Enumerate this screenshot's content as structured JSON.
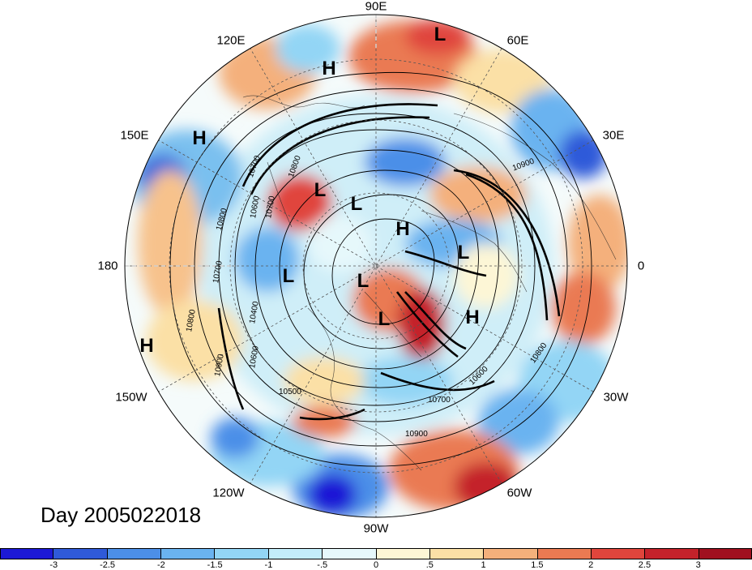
{
  "title": "Day 2005022018",
  "longitude_labels": [
    "90E",
    "60E",
    "30E",
    "0",
    "30W",
    "60W",
    "90W",
    "120W",
    "150W",
    "180",
    "150E",
    "120E"
  ],
  "pressure_systems": [
    {
      "label": "L"
    },
    {
      "label": "H"
    },
    {
      "label": "H"
    },
    {
      "label": "L"
    },
    {
      "label": "L"
    },
    {
      "label": "H"
    },
    {
      "label": "L"
    },
    {
      "label": "L"
    },
    {
      "label": "L"
    },
    {
      "label": "L"
    },
    {
      "label": "H"
    },
    {
      "label": "H"
    }
  ],
  "contour_labels": [
    "10900",
    "10800",
    "10700",
    "10600",
    "10500",
    "10400",
    "10900",
    "10700",
    "10600",
    "10800",
    "10900",
    "10700",
    "10600",
    "10800",
    "10700",
    "10800"
  ],
  "colorbar": {
    "ticks": [
      "-3",
      "-2.5",
      "-2",
      "-1.5",
      "-1",
      "-.5",
      "0",
      ".5",
      "1",
      "1.5",
      "2",
      "2.5",
      "3"
    ],
    "colors": [
      "#1c19d6",
      "#2f5ad9",
      "#4c8fe8",
      "#6ab3f0",
      "#93d5f5",
      "#c3edfa",
      "#e6f8fb",
      "#fdf6d6",
      "#fbe0a6",
      "#f4b07b",
      "#ea7a52",
      "#e0453c",
      "#c4222b",
      "#a0101f"
    ]
  }
}
